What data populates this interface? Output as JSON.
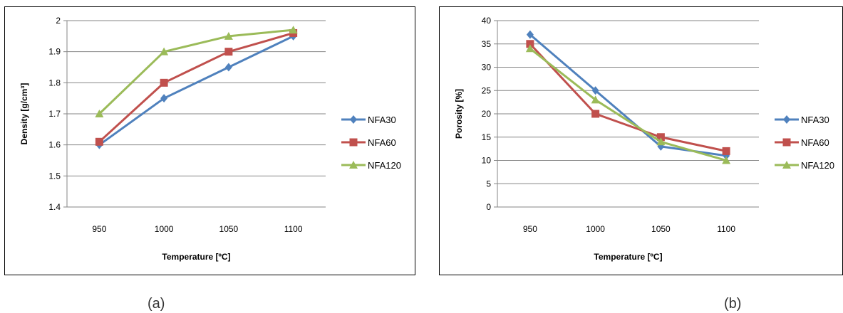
{
  "captions": {
    "a": "(a)",
    "b": "(b)"
  },
  "chart_data": [
    {
      "id": "a",
      "type": "line",
      "categories": [
        "950",
        "1000",
        "1050",
        "1100"
      ],
      "xlabel": "Temperature [ºC]",
      "ylabel": "Density  [g/cm³]",
      "ylim": [
        1.4,
        2.0
      ],
      "ytick_step": 0.1,
      "yticks": [
        "1.4",
        "1.5",
        "1.6",
        "1.7",
        "1.8",
        "1.9",
        "2"
      ],
      "grid": true,
      "legend_position": "right",
      "series": [
        {
          "name": "NFA30",
          "color": "#4f81bd",
          "marker": "diamond",
          "values": [
            1.6,
            1.75,
            1.85,
            1.95
          ]
        },
        {
          "name": "NFA60",
          "color": "#c0504d",
          "marker": "square",
          "values": [
            1.61,
            1.8,
            1.9,
            1.96
          ]
        },
        {
          "name": "NFA120",
          "color": "#9bbb59",
          "marker": "triangle",
          "values": [
            1.7,
            1.9,
            1.95,
            1.97
          ]
        }
      ]
    },
    {
      "id": "b",
      "type": "line",
      "categories": [
        "950",
        "1000",
        "1050",
        "1100"
      ],
      "xlabel": "Temperature [ºC]",
      "ylabel": "Porosity [%]",
      "ylim": [
        0,
        40
      ],
      "ytick_step": 5,
      "yticks": [
        "0",
        "5",
        "10",
        "15",
        "20",
        "25",
        "30",
        "35",
        "40"
      ],
      "grid": true,
      "legend_position": "right",
      "series": [
        {
          "name": "NFA30",
          "color": "#4f81bd",
          "marker": "diamond",
          "values": [
            37,
            25,
            13,
            11
          ]
        },
        {
          "name": "NFA60",
          "color": "#c0504d",
          "marker": "square",
          "values": [
            35,
            20,
            15,
            12
          ]
        },
        {
          "name": "NFA120",
          "color": "#9bbb59",
          "marker": "triangle",
          "values": [
            34,
            23,
            14,
            10
          ]
        }
      ]
    }
  ]
}
